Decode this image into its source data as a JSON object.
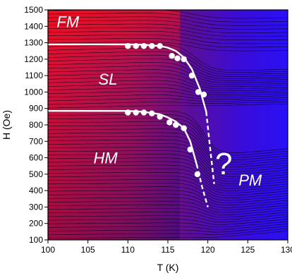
{
  "chart_data": {
    "type": "heatmap",
    "title": "",
    "xlabel": "T (K)",
    "ylabel": "H (Oe)",
    "xlim": [
      100,
      130
    ],
    "ylim": [
      100,
      1500
    ],
    "x_ticks": [
      "100",
      "105",
      "110",
      "115",
      "120",
      "125",
      "130"
    ],
    "y_ticks": [
      "100",
      "200",
      "300",
      "400",
      "500",
      "600",
      "700",
      "800",
      "900",
      "1000",
      "1100",
      "1200",
      "1300",
      "1400",
      "1500"
    ],
    "grid": false,
    "legend": "none",
    "colors": {
      "low": "#2200ff",
      "high": "#ff1010",
      "contour": "#000000",
      "boundary": "#ffffff",
      "point": "#ffffff"
    },
    "regions": [
      {
        "label": "FM",
        "x": 102.5,
        "y": 1420
      },
      {
        "label": "SL",
        "x": 107.5,
        "y": 1070
      },
      {
        "label": "HM",
        "x": 107.2,
        "y": 590
      },
      {
        "label": "PM",
        "x": 125.3,
        "y": 455
      },
      {
        "label": "?",
        "x": 122.0,
        "y": 550
      }
    ],
    "series": [
      {
        "type": "scatter",
        "x": [
          110,
          111,
          112,
          113,
          114,
          115.5,
          116.2,
          117,
          118,
          118.8,
          119.5
        ],
        "y": [
          1280,
          1280,
          1280,
          1280,
          1280,
          1220,
          1205,
          1200,
          1100,
          1000,
          985
        ]
      },
      {
        "type": "scatter",
        "x": [
          110,
          111,
          112,
          113,
          114,
          115.2,
          116,
          117,
          117.8,
          118.7
        ],
        "y": [
          875,
          875,
          875,
          870,
          850,
          815,
          800,
          780,
          650,
          500
        ]
      },
      {
        "type": "line",
        "style": "solid",
        "x": [
          100,
          110,
          112,
          114,
          115,
          116,
          117,
          118,
          119,
          119.8
        ],
        "y": [
          1290,
          1290,
          1288,
          1280,
          1270,
          1250,
          1210,
          1140,
          1020,
          880
        ]
      },
      {
        "type": "line",
        "style": "dashed",
        "x": [
          119.8,
          120.3,
          120.8
        ],
        "y": [
          880,
          650,
          440
        ]
      },
      {
        "type": "line",
        "style": "solid",
        "x": [
          100,
          110,
          112,
          114,
          115,
          116,
          117,
          117.8,
          118.6
        ],
        "y": [
          885,
          885,
          880,
          865,
          845,
          820,
          780,
          700,
          560
        ]
      },
      {
        "type": "line",
        "style": "dashed",
        "x": [
          118.6,
          119.3,
          120
        ],
        "y": [
          560,
          420,
          300
        ]
      }
    ]
  }
}
